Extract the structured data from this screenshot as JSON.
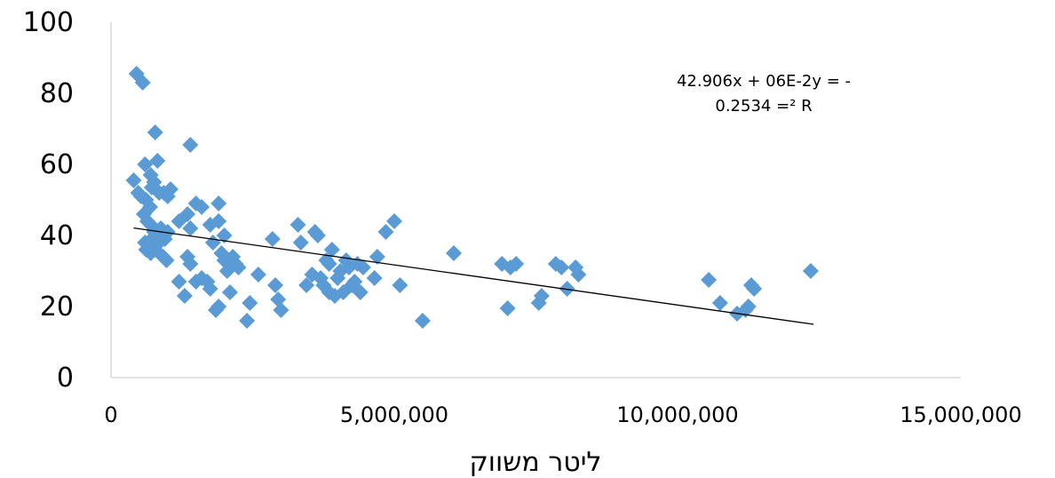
{
  "chart_data": {
    "type": "scatter",
    "xlabel": "ליטר משווק",
    "ylabel": "",
    "xlim": [
      0,
      15000000
    ],
    "ylim": [
      0,
      100
    ],
    "x_ticks": [
      0,
      5000000,
      10000000,
      15000000
    ],
    "x_tick_labels": [
      "0",
      "5,000,000",
      "10,000,000",
      "15,000,000"
    ],
    "y_ticks": [
      0,
      20,
      40,
      60,
      80,
      100
    ],
    "y_tick_labels": [
      "0",
      "20",
      "40",
      "60",
      "80",
      "100"
    ],
    "grid": false,
    "marker_color": "#5B9BD5",
    "trendline": {
      "type": "linear",
      "x": [
        400000,
        12400000
      ],
      "y": [
        42.1,
        15.0
      ],
      "color": "#000000"
    },
    "annotation": {
      "line1": "42.906x + 06E-2y = -",
      "line2": "0.2534 =² R"
    },
    "points": [
      [
        450000,
        85.5
      ],
      [
        560000,
        83
      ],
      [
        400000,
        55.5
      ],
      [
        600000,
        60
      ],
      [
        700000,
        57
      ],
      [
        720000,
        53.5
      ],
      [
        820000,
        61
      ],
      [
        780000,
        69
      ],
      [
        1400000,
        65.5
      ],
      [
        480000,
        52
      ],
      [
        530000,
        51
      ],
      [
        620000,
        50
      ],
      [
        690000,
        48
      ],
      [
        760000,
        55
      ],
      [
        850000,
        52
      ],
      [
        930000,
        52
      ],
      [
        1000000,
        51
      ],
      [
        1050000,
        53
      ],
      [
        1200000,
        44
      ],
      [
        1350000,
        46
      ],
      [
        1400000,
        42
      ],
      [
        1500000,
        49
      ],
      [
        1600000,
        48
      ],
      [
        1750000,
        43
      ],
      [
        1900000,
        44
      ],
      [
        1900000,
        49
      ],
      [
        2000000,
        40
      ],
      [
        1800000,
        38
      ],
      [
        580000,
        46
      ],
      [
        640000,
        44
      ],
      [
        700000,
        43
      ],
      [
        760000,
        41
      ],
      [
        830000,
        40
      ],
      [
        880000,
        42
      ],
      [
        950000,
        39
      ],
      [
        1000000,
        41
      ],
      [
        600000,
        38
      ],
      [
        660000,
        37
      ],
      [
        720000,
        39
      ],
      [
        780000,
        36
      ],
      [
        850000,
        38
      ],
      [
        620000,
        36
      ],
      [
        700000,
        35
      ],
      [
        920000,
        34
      ],
      [
        980000,
        33
      ],
      [
        1200000,
        27
      ],
      [
        1300000,
        23
      ],
      [
        1350000,
        34
      ],
      [
        1400000,
        32
      ],
      [
        1500000,
        27
      ],
      [
        1600000,
        28
      ],
      [
        1700000,
        27
      ],
      [
        1750000,
        25
      ],
      [
        1850000,
        19
      ],
      [
        1900000,
        20
      ],
      [
        1950000,
        35
      ],
      [
        2000000,
        33
      ],
      [
        2050000,
        30
      ],
      [
        2100000,
        24
      ],
      [
        2150000,
        34
      ],
      [
        2200000,
        32
      ],
      [
        2250000,
        31
      ],
      [
        2400000,
        16
      ],
      [
        2450000,
        21
      ],
      [
        2600000,
        29
      ],
      [
        2850000,
        39
      ],
      [
        2900000,
        26
      ],
      [
        2950000,
        22
      ],
      [
        3000000,
        19
      ],
      [
        3300000,
        43
      ],
      [
        3350000,
        38
      ],
      [
        3450000,
        26
      ],
      [
        3550000,
        29
      ],
      [
        3600000,
        41
      ],
      [
        3650000,
        40
      ],
      [
        3700000,
        28
      ],
      [
        3750000,
        26
      ],
      [
        3800000,
        33
      ],
      [
        3850000,
        32
      ],
      [
        3900000,
        36
      ],
      [
        3850000,
        24
      ],
      [
        3950000,
        23
      ],
      [
        4000000,
        28
      ],
      [
        4050000,
        30
      ],
      [
        4100000,
        24
      ],
      [
        4150000,
        33
      ],
      [
        4200000,
        31
      ],
      [
        4250000,
        26
      ],
      [
        4300000,
        27
      ],
      [
        4350000,
        32
      ],
      [
        4400000,
        24
      ],
      [
        4450000,
        31
      ],
      [
        4650000,
        28
      ],
      [
        4700000,
        34
      ],
      [
        4850000,
        41
      ],
      [
        5000000,
        44
      ],
      [
        5100000,
        26
      ],
      [
        5500000,
        16
      ],
      [
        6050000,
        35
      ],
      [
        6900000,
        32
      ],
      [
        7000000,
        19.5
      ],
      [
        7050000,
        31
      ],
      [
        7150000,
        32
      ],
      [
        7550000,
        21
      ],
      [
        7600000,
        23
      ],
      [
        7850000,
        32
      ],
      [
        7950000,
        31
      ],
      [
        8050000,
        25
      ],
      [
        8200000,
        31
      ],
      [
        8250000,
        29
      ],
      [
        10550000,
        27.5
      ],
      [
        10750000,
        21
      ],
      [
        11050000,
        18
      ],
      [
        11200000,
        19
      ],
      [
        11250000,
        20
      ],
      [
        11300000,
        26
      ],
      [
        11350000,
        25
      ],
      [
        12350000,
        30
      ]
    ]
  }
}
